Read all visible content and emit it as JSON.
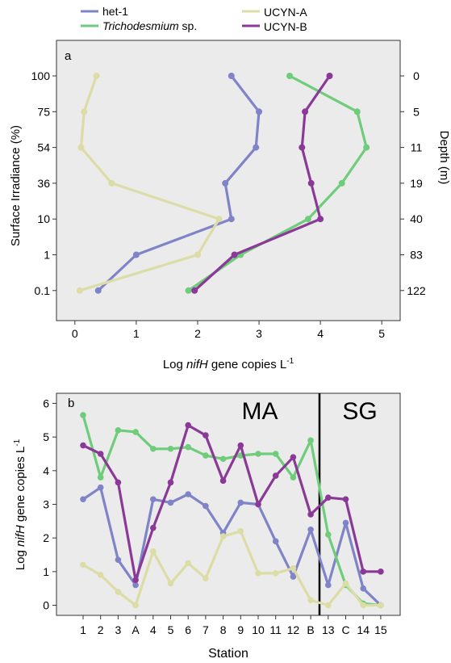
{
  "legend": {
    "items": [
      {
        "label": "het-1",
        "italic": false,
        "color": "#7f83c7"
      },
      {
        "label": "Trichodesmium",
        "suffix": " sp.",
        "italic": true,
        "color": "#6fcc7a"
      },
      {
        "label": "UCYN-A",
        "italic": false,
        "color": "#dcdca6"
      },
      {
        "label": "UCYN-B",
        "italic": false,
        "color": "#8a3a96"
      }
    ]
  },
  "panel_a": {
    "panel_label": "a",
    "xlabel_prefix": "Log ",
    "xlabel_italic": "nifH",
    "xlabel_suffix": " gene copies L",
    "xlabel_sup": "-1",
    "ylabel_left": "Surface Irradiance (%)",
    "ylabel_right": "Depth (m)"
  },
  "panel_b": {
    "panel_label": "b",
    "ylabel_prefix": "Log ",
    "ylabel_italic": "nifH",
    "ylabel_suffix": " gene copies L",
    "ylabel_sup": "-1",
    "xlabel": "Station",
    "region_left": "MA",
    "region_right": "SG"
  },
  "chart_data": [
    {
      "type": "line",
      "orientation": "profile",
      "xlim": [
        -0.3,
        5.3
      ],
      "x_ticks": [
        0,
        1,
        2,
        3,
        4,
        5
      ],
      "y_levels_irradiance": [
        "100",
        "75",
        "54",
        "36",
        "10",
        "1",
        "0.1"
      ],
      "y_levels_depth": [
        "0",
        "5",
        "11",
        "19",
        "40",
        "83",
        "122"
      ],
      "grid": false,
      "series": [
        {
          "name": "het-1",
          "color": "#7f83c7",
          "values": [
            2.55,
            3.0,
            2.95,
            2.45,
            2.55,
            1.0,
            0.38
          ]
        },
        {
          "name": "Trichodesmium sp.",
          "color": "#6fcc7a",
          "values": [
            3.5,
            4.6,
            4.75,
            4.35,
            3.8,
            2.7,
            1.85
          ]
        },
        {
          "name": "UCYN-A",
          "color": "#dcdca6",
          "values": [
            0.35,
            0.15,
            0.1,
            0.6,
            2.35,
            2.0,
            0.08
          ]
        },
        {
          "name": "UCYN-B",
          "color": "#8a3a96",
          "values": [
            4.15,
            3.75,
            3.7,
            3.85,
            4.0,
            2.6,
            1.95
          ]
        }
      ]
    },
    {
      "type": "line",
      "categories": [
        "1",
        "2",
        "3",
        "A",
        "4",
        "5",
        "6",
        "7",
        "8",
        "9",
        "10",
        "11",
        "12",
        "B",
        "13",
        "C",
        "14",
        "15"
      ],
      "ylim": [
        -0.3,
        6.3
      ],
      "y_ticks": [
        0,
        1,
        2,
        3,
        4,
        5,
        6
      ],
      "grid": false,
      "series": [
        {
          "name": "het-1",
          "color": "#7f83c7",
          "values": [
            3.15,
            3.5,
            1.35,
            0.6,
            3.15,
            3.05,
            3.3,
            2.95,
            2.15,
            3.05,
            3.0,
            1.9,
            0.85,
            2.25,
            0.6,
            2.45,
            0.5,
            0.0
          ]
        },
        {
          "name": "Trichodesmium sp.",
          "color": "#6fcc7a",
          "values": [
            5.65,
            3.8,
            5.2,
            5.15,
            4.65,
            4.65,
            4.7,
            4.45,
            4.35,
            4.45,
            4.5,
            4.5,
            3.8,
            4.9,
            2.1,
            0.6,
            0.05,
            0.0
          ]
        },
        {
          "name": "UCYN-A",
          "color": "#dcdca6",
          "values": [
            1.2,
            0.9,
            0.4,
            0.0,
            1.6,
            0.65,
            1.25,
            0.8,
            2.05,
            2.2,
            0.95,
            0.95,
            1.1,
            0.15,
            0.0,
            0.65,
            0.0,
            0.0
          ]
        },
        {
          "name": "UCYN-B",
          "color": "#8a3a96",
          "values": [
            4.75,
            4.5,
            3.65,
            0.75,
            2.3,
            3.65,
            5.35,
            5.05,
            3.7,
            4.75,
            3.0,
            3.85,
            4.4,
            2.7,
            3.2,
            3.15,
            1.0,
            1.0
          ]
        }
      ]
    }
  ]
}
